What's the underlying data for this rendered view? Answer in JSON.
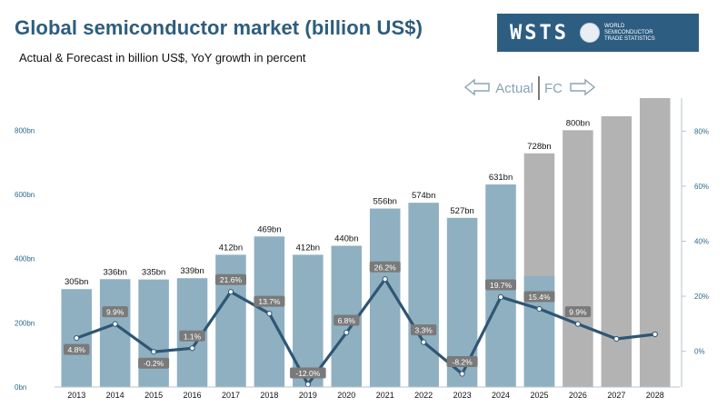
{
  "header": {
    "title": "Global semiconductor market (billion US$)",
    "subtitle": "Actual & Forecast in billion US$, YoY growth in percent"
  },
  "logo": {
    "wordmark": "WSTS",
    "lines": [
      "WORLD",
      "SEMICONDUCTOR",
      "TRADE STATISTICS"
    ]
  },
  "phase_marker": {
    "actual_label": "Actual",
    "forecast_label": "FC"
  },
  "colors": {
    "actual_bar": "#8fb0c1",
    "forecast_bar": "#b3b3b3",
    "line": "#2f5673",
    "label_bg": "#7a7a7a",
    "axis_text": "#2f6a8a",
    "title": "#2e5d7d"
  },
  "chart_data": {
    "type": "bar",
    "categories": [
      "2013",
      "2014",
      "2015",
      "2016",
      "2017",
      "2018",
      "2019",
      "2020",
      "2021",
      "2022",
      "2023",
      "2024",
      "2025",
      "2026",
      "2027",
      "2028"
    ],
    "series": [
      {
        "values": [
          305,
          336,
          335,
          339,
          412,
          469,
          412,
          440,
          556,
          574,
          527,
          631,
          728,
          800,
          null,
          null
        ],
        "labels": [
          "305bn",
          "336bn",
          "335bn",
          "339bn",
          "412bn",
          "469bn",
          "412bn",
          "440bn",
          "556bn",
          "574bn",
          "527bn",
          "631bn",
          "728bn",
          "800bn",
          "",
          ""
        ],
        "forecast_from_index": 12
      },
      {
        "values": [
          4.8,
          9.9,
          -0.2,
          1.1,
          21.6,
          13.7,
          -12.0,
          6.8,
          26.2,
          3.3,
          -8.2,
          19.7,
          15.4,
          9.9,
          null,
          null
        ],
        "labels": [
          "4.8%",
          "9.9%",
          "-0.2%",
          "1.1%",
          "21.6%",
          "13.7%",
          "-12.0%",
          "6.8%",
          "26.2%",
          "3.3%",
          "-8.2%",
          "19.7%",
          "15.4%",
          "9.9%",
          "",
          ""
        ],
        "axis": "right",
        "type": "line"
      }
    ],
    "yticks_left": [
      "0bn",
      "200bn",
      "400bn",
      "600bn",
      "800bn"
    ],
    "yticks_left_values": [
      0,
      200,
      400,
      600,
      800
    ],
    "ylim_left": [
      0,
      900
    ],
    "yticks_right": [
      "0%",
      "20%",
      "40%",
      "60%",
      "80%"
    ],
    "yticks_right_values": [
      0,
      20,
      40,
      60,
      80
    ],
    "ylim_right": [
      -13,
      92
    ],
    "grid": false
  }
}
